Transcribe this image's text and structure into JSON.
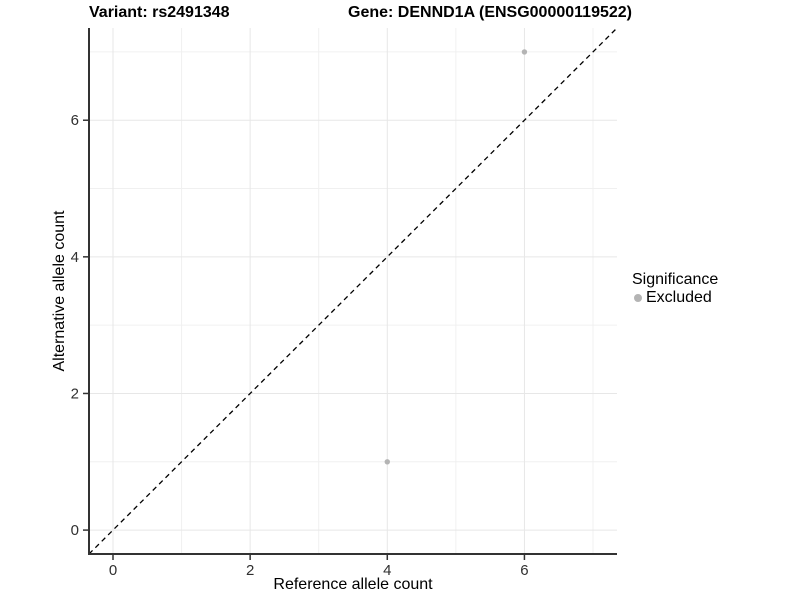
{
  "chart_data": {
    "type": "scatter",
    "titles": {
      "variant": "Variant: rs2491348",
      "gene": "Gene: DENND1A (ENSG00000119522)"
    },
    "xlabel": "Reference allele count",
    "ylabel": "Alternative allele count",
    "xlim": [
      -0.35,
      7.35
    ],
    "ylim": [
      -0.35,
      7.35
    ],
    "x_ticks": [
      0,
      2,
      4,
      6
    ],
    "y_ticks": [
      0,
      2,
      4,
      6
    ],
    "x_minor_gridlines": [
      1,
      3,
      5,
      7
    ],
    "y_minor_gridlines": [
      1,
      3,
      5,
      7
    ],
    "grid": true,
    "identity_line": {
      "slope": 1,
      "intercept": 0,
      "style": "dashed",
      "color": "#000000"
    },
    "series": [
      {
        "name": "Excluded",
        "color": "#b4b4b4",
        "points": [
          [
            4,
            1
          ],
          [
            6,
            7
          ]
        ]
      }
    ],
    "legend": {
      "position": "right",
      "title": "Significance",
      "entries": [
        {
          "label": "Excluded",
          "color": "#b4b4b4"
        }
      ]
    },
    "colors": {
      "background": "#ffffff",
      "axis_line": "#333333",
      "tick_mark": "#333333",
      "tick_label": "#303030",
      "grid_major": "#e7e7e7",
      "grid_minor": "#f0f0f0"
    }
  }
}
